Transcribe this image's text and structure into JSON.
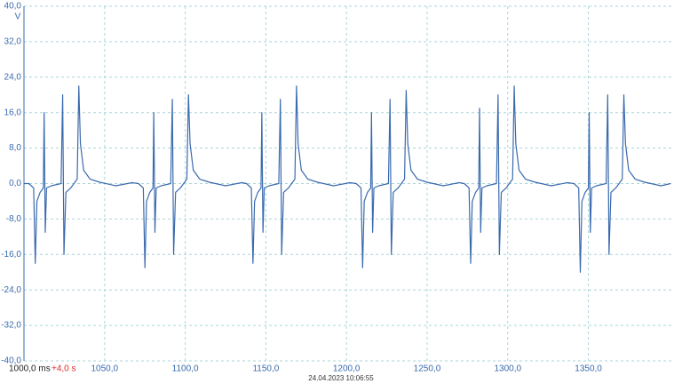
{
  "chart_data": {
    "type": "line",
    "ylabel": "V",
    "annotation": "+4,0 s",
    "annotation_color": "#e02a2a",
    "timestamp": "24.04.2023 10:06:55",
    "color": "#3a6aae",
    "grid": true,
    "xlim": [
      1000,
      1402
    ],
    "ylim": [
      -40,
      40
    ],
    "xticks": [
      {
        "value": 1000,
        "label": "1000,0 ms"
      },
      {
        "value": 1050,
        "label": "1050,0"
      },
      {
        "value": 1100,
        "label": "1100,0"
      },
      {
        "value": 1150,
        "label": "1150,0"
      },
      {
        "value": 1200,
        "label": "1200,0"
      },
      {
        "value": 1250,
        "label": "1250,0"
      },
      {
        "value": 1300,
        "label": "1300,0"
      },
      {
        "value": 1350,
        "label": "1350,0"
      }
    ],
    "yticks": [
      {
        "value": -40,
        "label": "-40,0"
      },
      {
        "value": -32,
        "label": "-32,0"
      },
      {
        "value": -24,
        "label": "-24,0"
      },
      {
        "value": -16,
        "label": "-16,0"
      },
      {
        "value": -8,
        "label": "-8,0"
      },
      {
        "value": 0,
        "label": "0,0"
      },
      {
        "value": 8,
        "label": "8,0"
      },
      {
        "value": 16,
        "label": "16,0"
      },
      {
        "value": 24,
        "label": "24,0"
      },
      {
        "value": 32,
        "label": "32,0"
      },
      {
        "value": 40,
        "label": "40,0"
      }
    ],
    "x": [
      1000,
      1003,
      1006,
      1007,
      1008,
      1010,
      1012,
      1012.5,
      1013.2,
      1014,
      1017,
      1023,
      1024,
      1024.8,
      1026,
      1029,
      1033,
      1034,
      1035,
      1037,
      1041,
      1047,
      1057,
      1067,
      1071,
      1074,
      1075,
      1076,
      1078,
      1080,
      1080.5,
      1081.2,
      1082,
      1085,
      1091,
      1092,
      1092.8,
      1094,
      1097,
      1101,
      1102,
      1103,
      1105,
      1109,
      1115,
      1125,
      1135,
      1138,
      1141,
      1142,
      1143,
      1145,
      1147,
      1147.5,
      1148.2,
      1149,
      1152,
      1158,
      1159,
      1159.8,
      1161,
      1164,
      1168,
      1169,
      1170,
      1172,
      1176,
      1182,
      1192,
      1202,
      1206,
      1209,
      1210,
      1211,
      1213,
      1215,
      1215.5,
      1216.2,
      1217,
      1220,
      1226,
      1227,
      1227.8,
      1229,
      1232,
      1236,
      1237,
      1238,
      1240,
      1244,
      1250,
      1260,
      1270,
      1273,
      1276,
      1277,
      1278,
      1280,
      1282,
      1282.5,
      1283.2,
      1284,
      1287,
      1293,
      1294,
      1294.8,
      1296,
      1299,
      1303,
      1304,
      1305,
      1307,
      1311,
      1317,
      1327,
      1337,
      1341,
      1344,
      1345,
      1346,
      1348,
      1350,
      1350.5,
      1351.2,
      1352,
      1355,
      1361,
      1362,
      1362.8,
      1364,
      1367,
      1371,
      1372,
      1373,
      1375,
      1379,
      1385,
      1395,
      1401
    ],
    "values": [
      0,
      0,
      -1,
      -18,
      -4,
      -2,
      -1,
      16,
      -11,
      -1,
      -0.5,
      0,
      20,
      -16,
      -2,
      -1,
      1,
      22,
      9,
      3,
      1,
      0.3,
      -0.5,
      0.2,
      0,
      -1,
      -19,
      -4,
      -2,
      -1,
      16,
      -11,
      -1,
      -0.5,
      0,
      19,
      -16,
      -2,
      -1,
      1,
      20,
      9,
      3,
      1,
      0.3,
      -0.5,
      0.2,
      0,
      -1,
      -18,
      -4,
      -2,
      -1,
      16,
      -11,
      -1,
      -0.5,
      0,
      19,
      -16,
      -2,
      -1,
      1,
      22,
      9,
      3,
      1,
      0.3,
      -0.5,
      0.2,
      0,
      -1,
      -19,
      -4,
      -2,
      -1,
      16,
      -11,
      -1,
      -0.5,
      0,
      19,
      -16,
      -2,
      -1,
      1,
      21,
      9,
      3,
      1,
      0.3,
      -0.5,
      0.2,
      0,
      -1,
      -18,
      -4,
      -2,
      -1,
      17,
      -11,
      -1,
      -0.5,
      0,
      20,
      -16,
      -2,
      -1,
      1,
      22,
      9,
      3,
      1,
      0.3,
      -0.5,
      0.2,
      0,
      -1,
      -20,
      -4,
      -2,
      -1,
      16,
      -11,
      -1,
      -0.5,
      0,
      20,
      -16,
      -2,
      -1,
      1,
      20,
      9,
      3,
      1,
      0.3,
      -0.5,
      0
    ]
  }
}
